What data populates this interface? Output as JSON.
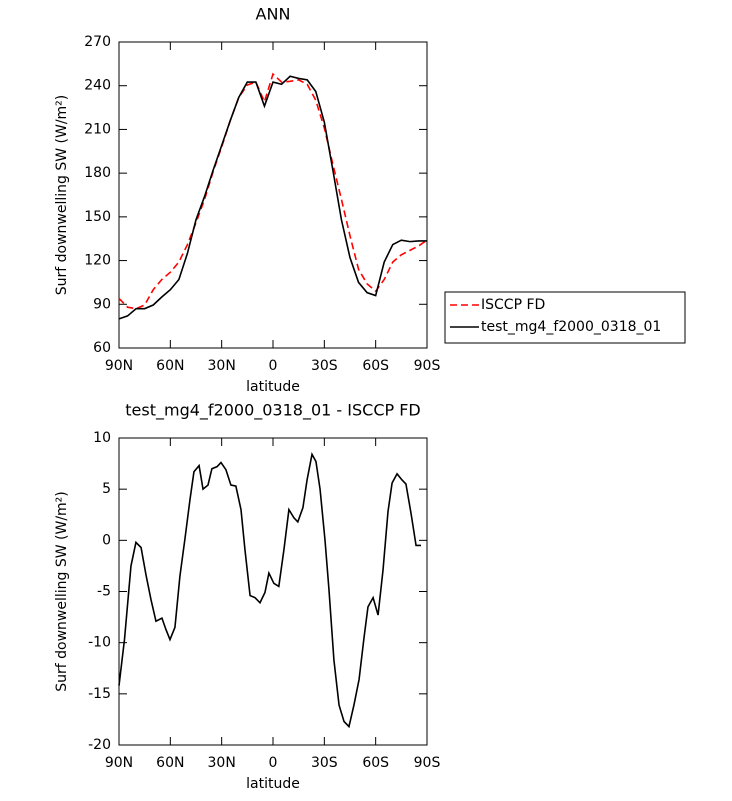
{
  "chart_data": [
    {
      "type": "line",
      "title": "ANN",
      "xlabel": "latitude",
      "ylabel": "Surf downwelling SW (W/m²)",
      "x": [
        90,
        85,
        80,
        75,
        70,
        65,
        60,
        55,
        50,
        45,
        40,
        35,
        30,
        25,
        20,
        15,
        10,
        5,
        0,
        -5,
        -10,
        -15,
        -20,
        -25,
        -30,
        -35,
        -40,
        -45,
        -50,
        -55,
        -60,
        -65,
        -70,
        -75,
        -80,
        -85,
        -90
      ],
      "xlim": [
        90,
        -90
      ],
      "xticks": [
        {
          "value": 90,
          "label": "90N"
        },
        {
          "value": 60,
          "label": "60N"
        },
        {
          "value": 30,
          "label": "30N"
        },
        0,
        {
          "value": -30,
          "label": "30S"
        },
        {
          "value": -60,
          "label": "60S"
        },
        {
          "value": -90,
          "label": "90S"
        }
      ],
      "ylim": [
        60,
        270
      ],
      "yticks": [
        60,
        90,
        120,
        150,
        180,
        210,
        240,
        270
      ],
      "legend": "right",
      "series": [
        {
          "name": "ISCCP FD",
          "color": "#ff0000",
          "linestyle": "dashed",
          "values": [
            94,
            88,
            87,
            89.5,
            100,
            107,
            112,
            119,
            131,
            146,
            162,
            181,
            198,
            216,
            232,
            240.5,
            242.5,
            229,
            248,
            242.5,
            243,
            244,
            241,
            230,
            211,
            186,
            162,
            137,
            114,
            104,
            99,
            107,
            119,
            124,
            127,
            130,
            134
          ]
        },
        {
          "name": "test_mg4_f2000_0318_01",
          "color": "#000000",
          "linestyle": "solid",
          "values": [
            80,
            82,
            87,
            87,
            89.5,
            95,
            100,
            107,
            125,
            148,
            164,
            182,
            199,
            216,
            232,
            242.5,
            242.5,
            226,
            242.5,
            241,
            246.5,
            245,
            244,
            236,
            215,
            182,
            148,
            122,
            105,
            98,
            96,
            119,
            131,
            134,
            133,
            133.5,
            133.5
          ]
        }
      ]
    },
    {
      "type": "line",
      "title": "test_mg4_f2000_0318_01 - ISCCP FD",
      "xlabel": "latitude",
      "ylabel": "Surf downwelling SW (W/m²)",
      "x": [
        90,
        86.8,
        83,
        80.1,
        77.1,
        74.2,
        71.3,
        68.4,
        64.9,
        62.6,
        60.2,
        57.3,
        54.4,
        51.5,
        48.5,
        46.2,
        43.2,
        40.9,
        38,
        35.7,
        32.7,
        30.4,
        27.5,
        24.6,
        21.7,
        18.7,
        16.4,
        13.4,
        10.5,
        7.6,
        4.7,
        2.4,
        -0.5,
        -3.4,
        -6.4,
        -9.3,
        -12.2,
        -14.5,
        -17.5,
        -19.9,
        -22.8,
        -25.1,
        -27.5,
        -30.4,
        -32.7,
        -35.6,
        -38.6,
        -41.5,
        -44.4,
        -47.3,
        -50.3,
        -53.2,
        -55.5,
        -58.5,
        -61.4,
        -64.3,
        -67.2,
        -69.6,
        -72.5,
        -75.4,
        -77.7,
        -80.7,
        -83.6,
        -86.5
      ],
      "xlim": [
        90,
        -90
      ],
      "xticks": [
        {
          "value": 90,
          "label": "90N"
        },
        {
          "value": 60,
          "label": "60N"
        },
        {
          "value": 30,
          "label": "30N"
        },
        0,
        {
          "value": -30,
          "label": "30S"
        },
        {
          "value": -60,
          "label": "60S"
        },
        {
          "value": -90,
          "label": "90S"
        }
      ],
      "ylim": [
        -20,
        10
      ],
      "yticks": [
        -20,
        -15,
        -10,
        -5,
        0,
        5,
        10
      ],
      "series": [
        {
          "color": "#000000",
          "linestyle": "solid",
          "values": [
            -14.2,
            -9.7,
            -2.5,
            -0.2,
            -0.7,
            -3.4,
            -5.8,
            -7.9,
            -7.6,
            -8.7,
            -9.7,
            -8.5,
            -3.5,
            0.1,
            4,
            6.7,
            7.3,
            5,
            5.4,
            7,
            7.2,
            7.6,
            6.9,
            5.4,
            5.3,
            3,
            -0.9,
            -5.4,
            -5.6,
            -6.1,
            -5.1,
            -3.2,
            -4.2,
            -4.5,
            -0.9,
            3,
            2.2,
            1.8,
            3.2,
            5.9,
            8.4,
            7.7,
            5,
            0,
            -4.8,
            -11.7,
            -16.1,
            -17.7,
            -18.2,
            -16.1,
            -13.6,
            -9.5,
            -6.5,
            -5.6,
            -7.3,
            -2.9,
            2.8,
            5.6,
            6.5,
            5.9,
            5.5,
            2.6,
            -0.5,
            -0.5
          ]
        }
      ]
    }
  ]
}
